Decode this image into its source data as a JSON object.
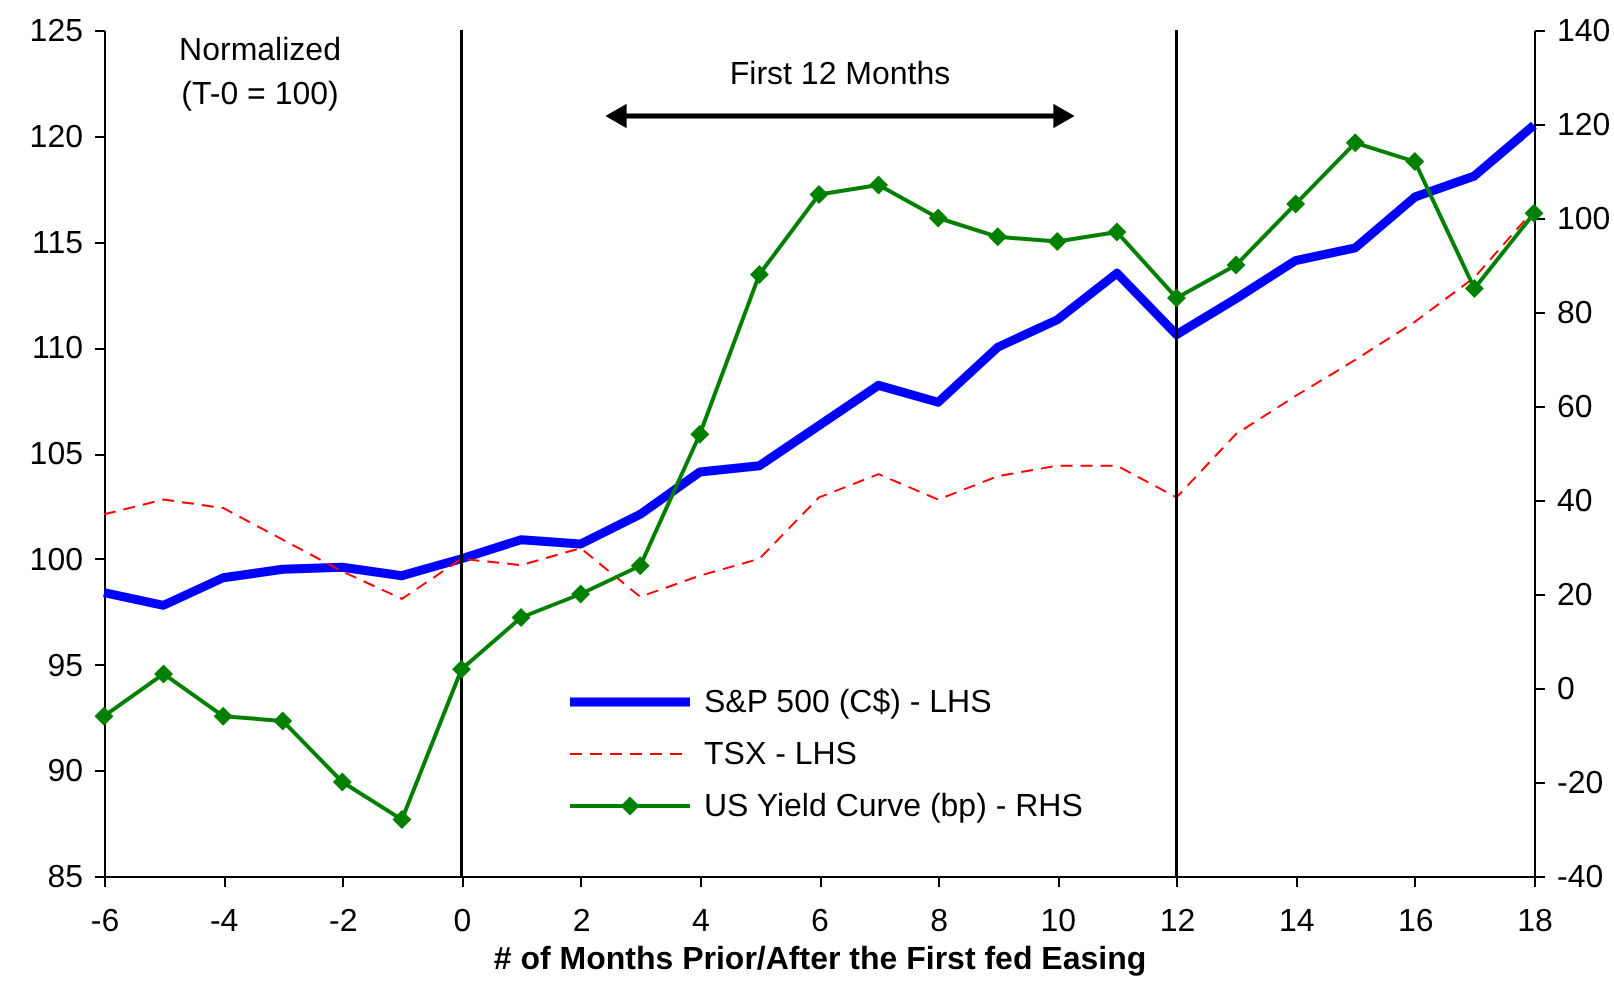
{
  "chart_data": {
    "type": "line",
    "xlabel": "# of Months Prior/After the First fed Easing",
    "x": [
      -6,
      -5,
      -4,
      -3,
      -2,
      -1,
      0,
      1,
      2,
      3,
      4,
      5,
      6,
      7,
      8,
      9,
      10,
      11,
      12,
      13,
      14,
      15,
      16,
      17,
      18
    ],
    "series": [
      {
        "name": "S&P 500 (C$) - LHS",
        "color": "#0000ff",
        "values": [
          98.4,
          97.8,
          99.1,
          99.5,
          99.6,
          99.2,
          100,
          100.9,
          100.7,
          102.1,
          104.1,
          104.4,
          106.3,
          108.2,
          107.4,
          110.0,
          111.3,
          113.5,
          110.6,
          112.3,
          114.1,
          114.7,
          117.1,
          118.1,
          120.5
        ]
      },
      {
        "name": "TSX - LHS",
        "color": "#ff0000",
        "line_style": "dashed",
        "values": [
          102.1,
          102.8,
          102.4,
          100.9,
          99.4,
          98.1,
          100,
          99.7,
          100.5,
          98.2,
          99.2,
          100.0,
          102.9,
          104.0,
          102.8,
          103.9,
          104.4,
          104.4,
          102.9,
          105.9,
          107.7,
          109.4,
          111.2,
          113.3,
          116.5
        ]
      },
      {
        "name": "US Yield Curve (bp) - RHS",
        "color": "#008000",
        "axis": "y2",
        "marker": "diamond",
        "values": [
          -6,
          3,
          -6,
          -7,
          -20,
          -28,
          4,
          15,
          20,
          26,
          54,
          88,
          105,
          107,
          100,
          96,
          95,
          97,
          83,
          90,
          103,
          116,
          112,
          85,
          101
        ]
      }
    ],
    "xlim": [
      -6,
      18
    ],
    "xticks": [
      -6,
      -4,
      -2,
      0,
      2,
      4,
      6,
      8,
      10,
      12,
      14,
      16,
      18
    ],
    "ylim": [
      85,
      125
    ],
    "yticks": [
      85,
      90,
      95,
      100,
      105,
      110,
      115,
      120,
      125
    ],
    "y2lim": [
      -40,
      140
    ],
    "y2ticks": [
      -40,
      -20,
      0,
      20,
      40,
      60,
      80,
      100,
      120,
      140
    ],
    "ref_lines": [
      {
        "axis": "x",
        "value": 0,
        "color": "#000000"
      },
      {
        "axis": "x",
        "value": 12,
        "color": "#000000"
      }
    ],
    "annotations": [
      "Normalized\n(T-0 = 100)",
      "First 12 Months"
    ],
    "legend": "bottom"
  }
}
